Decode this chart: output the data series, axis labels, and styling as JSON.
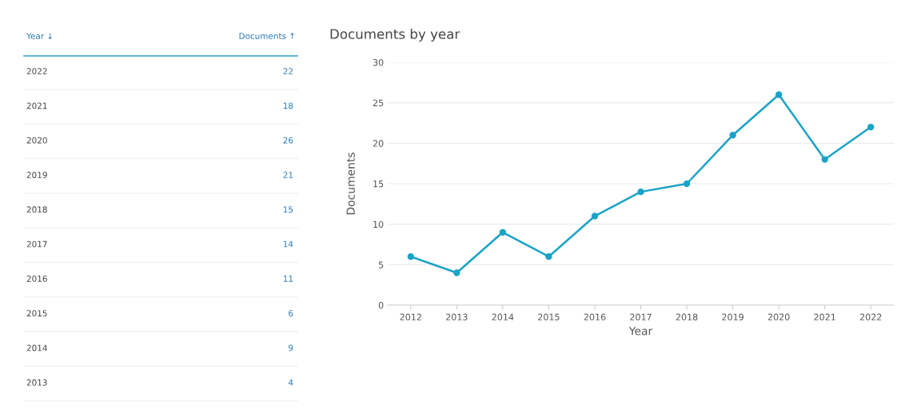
{
  "chart_data": {
    "type": "line",
    "title": "Documents by year",
    "xlabel": "Year",
    "ylabel": "Documents",
    "categories": [
      "2012",
      "2013",
      "2014",
      "2015",
      "2016",
      "2017",
      "2018",
      "2019",
      "2020",
      "2021",
      "2022"
    ],
    "series": [
      {
        "color": "#1aa3c8",
        "values": [
          6,
          4,
          9,
          6,
          11,
          14,
          15,
          21,
          26,
          18,
          22
        ]
      }
    ],
    "value_labels": [
      null,
      "4",
      "9",
      "6",
      "11",
      "14",
      "15",
      "21",
      "26",
      "18",
      "22"
    ],
    "annotations": [
      "Year ↓",
      "Documents ↑"
    ],
    "ylim": [
      0,
      30
    ],
    "yticks": [
      0,
      5,
      10,
      15,
      20,
      25,
      30
    ],
    "grid": "y",
    "marker": "circle",
    "line_style": "solid",
    "legend": false
  }
}
